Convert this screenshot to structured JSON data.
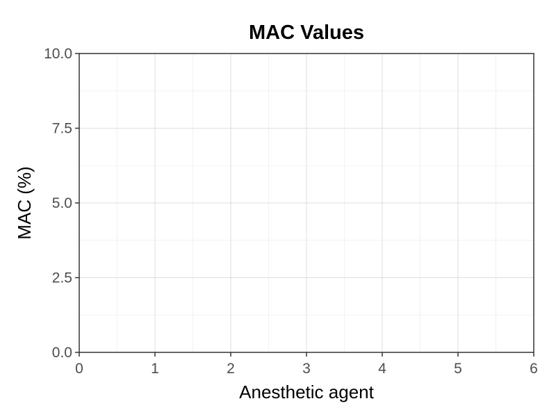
{
  "chart_data": {
    "type": "scatter",
    "title": "MAC Values",
    "xlabel": "Anesthetic agent",
    "ylabel": "MAC (%)",
    "xlim": [
      0,
      6
    ],
    "ylim": [
      0,
      10
    ],
    "x_ticks": [
      "0",
      "1",
      "2",
      "3",
      "4",
      "5",
      "6"
    ],
    "y_ticks": [
      "0.0",
      "2.5",
      "5.0",
      "7.5",
      "10.0"
    ],
    "grid": true,
    "series": []
  }
}
